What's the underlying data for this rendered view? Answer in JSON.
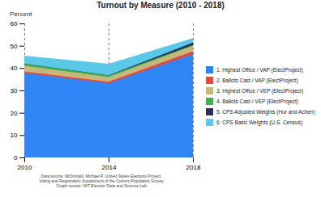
{
  "chart_data": {
    "type": "area",
    "title": "Turnout by Measure (2010 - 2018)",
    "y_label": "Percent",
    "x": [
      2010,
      2014,
      2018
    ],
    "xlim": [
      2010,
      2018
    ],
    "xticks": [
      2010,
      2014,
      2018
    ],
    "ylim": [
      0,
      60
    ],
    "yticks": [
      0,
      10,
      20,
      30,
      40,
      50,
      60
    ],
    "stacked": false,
    "grid": "x",
    "legend": "right",
    "series": [
      {
        "name": "1. Highest Office / VAP (ElectProject)",
        "color": "#2e86f5",
        "values": [
          37.8,
          33.2,
          46.3
        ]
      },
      {
        "name": "2. Ballots Cast / VAP (ElectProject)",
        "color": "#e8473b",
        "values": [
          38.5,
          33.9,
          47.5
        ]
      },
      {
        "name": "3. Highest Office / VEP (ElectProject)",
        "color": "#c8b77c",
        "values": [
          41.0,
          36.0,
          50.0
        ]
      },
      {
        "name": "4. Ballots Cast / VEP (ElectProject)",
        "color": "#3cb44b",
        "values": [
          41.8,
          36.7,
          50.3
        ]
      },
      {
        "name": "5. CPS Adjusted Weights (Hur and Achen)",
        "color": "#2b2f5b",
        "values": [
          41.9,
          36.8,
          51.4
        ]
      },
      {
        "name": "6. CPS Basic Weights (U.S. Census)",
        "color": "#5bc8e8",
        "values": [
          45.5,
          41.9,
          53.4
        ]
      }
    ],
    "caption": [
      "Data source: McDonald, Michael P. United States Elections Project,",
      "Voting and Registration Supplement of the Current Population Survey",
      "Graph source: MIT Election Data and Science Lab"
    ]
  }
}
